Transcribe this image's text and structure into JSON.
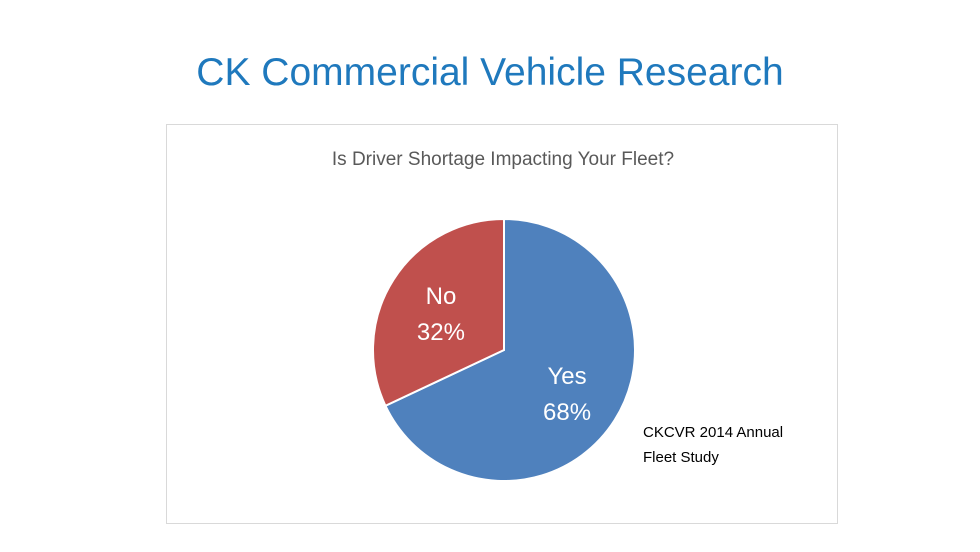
{
  "slide": {
    "title": "CK Commercial Vehicle Research"
  },
  "source_note": "CKCVR 2014 Annual\nFleet Study",
  "colors": {
    "title": "#1f79bd",
    "yes": "#4f81bd",
    "no": "#c0504d"
  },
  "chart_data": {
    "type": "pie",
    "title": "Is Driver Shortage Impacting Your Fleet?",
    "categories": [
      "Yes",
      "No"
    ],
    "values": [
      68,
      32
    ],
    "value_labels": [
      "68%",
      "32%"
    ],
    "colors": [
      "#4f81bd",
      "#c0504d"
    ]
  }
}
